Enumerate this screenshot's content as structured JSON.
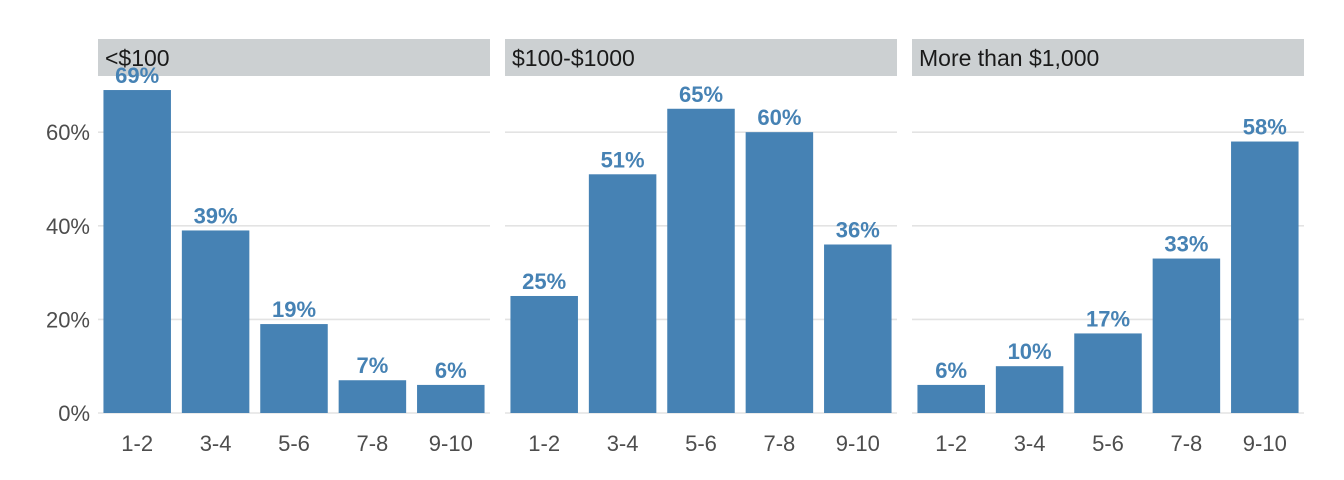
{
  "chart_data": {
    "type": "bar",
    "facet_layout": "horizontal",
    "categories": [
      "1-2",
      "3-4",
      "5-6",
      "7-8",
      "9-10"
    ],
    "ylim": [
      0,
      72
    ],
    "yticks": [
      0,
      20,
      40,
      60
    ],
    "ytick_labels": [
      "0%",
      "20%",
      "40%",
      "60%"
    ],
    "grid": true,
    "bar_color": "#4682B4",
    "label_color": "#4682B4",
    "strip_color": "#CCD0D2",
    "gridline_color": "#E3E3E3",
    "panels": [
      {
        "title": "<$100",
        "values": [
          69,
          39,
          19,
          7,
          6
        ],
        "labels": [
          "69%",
          "39%",
          "19%",
          "7%",
          "6%"
        ]
      },
      {
        "title": "$100-$1000",
        "values": [
          25,
          51,
          65,
          60,
          36
        ],
        "labels": [
          "25%",
          "51%",
          "65%",
          "60%",
          "36%"
        ]
      },
      {
        "title": "More than $1,000",
        "values": [
          6,
          10,
          17,
          33,
          58
        ],
        "labels": [
          "6%",
          "10%",
          "17%",
          "33%",
          "58%"
        ]
      }
    ]
  }
}
